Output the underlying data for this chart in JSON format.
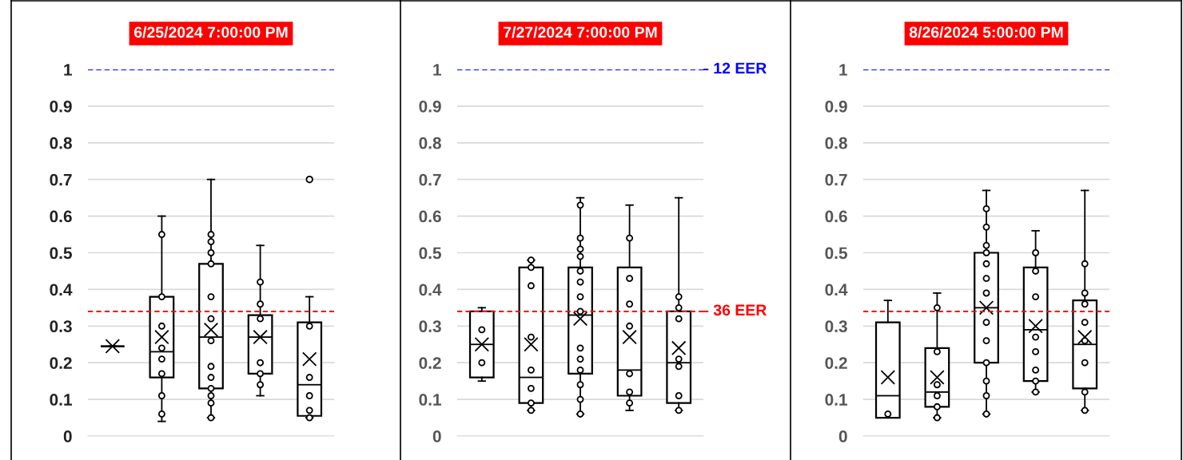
{
  "chart_data": [
    {
      "type": "box",
      "title": "6/25/2024 7:00:00 PM",
      "categories": [
        null,
        null,
        null,
        null,
        null
      ],
      "ylim": [
        0,
        1
      ],
      "yticks": [
        0,
        0.1,
        0.2,
        0.3,
        0.4,
        0.5,
        0.6,
        0.7,
        0.8,
        0.9,
        1
      ],
      "grid": "y",
      "marker": "circle",
      "color": "#000000",
      "ref_lines": [
        {
          "axis": "y",
          "value": 1,
          "color": "#0000ff",
          "line_style": "dashed"
        },
        {
          "axis": "y",
          "value": 0.34,
          "color": "#ff0000",
          "line_style": "dashed"
        }
      ],
      "boxes": [
        {
          "low": 0.245,
          "q1": 0.245,
          "median": 0.245,
          "q3": 0.245,
          "high": 0.245,
          "mean": 0.245
        },
        {
          "low": 0.04,
          "q1": 0.16,
          "median": 0.23,
          "q3": 0.38,
          "high": 0.6,
          "mean": 0.27
        },
        {
          "low": 0.05,
          "q1": 0.13,
          "median": 0.27,
          "q3": 0.47,
          "high": 0.7,
          "mean": 0.29
        },
        {
          "low": 0.11,
          "q1": 0.17,
          "median": 0.27,
          "q3": 0.33,
          "high": 0.52,
          "mean": 0.27
        },
        {
          "low": 0.05,
          "q1": 0.055,
          "median": 0.14,
          "q3": 0.31,
          "high": 0.38,
          "mean": 0.21,
          "outliers": [
            0.7
          ]
        }
      ],
      "series": [
        {
          "type": "scatter",
          "color": "#000000",
          "values": [
            null,
            0.55,
            0.55,
            0.42,
            0.3
          ]
        },
        {
          "type": "scatter",
          "color": "#000000",
          "values": [
            null,
            0.38,
            0.53,
            0.36,
            0.16
          ]
        },
        {
          "type": "scatter",
          "color": "#000000",
          "values": [
            null,
            0.3,
            0.5,
            0.32,
            0.11
          ]
        },
        {
          "type": "scatter",
          "color": "#000000",
          "values": [
            null,
            0.24,
            0.47,
            0.2,
            0.07
          ]
        },
        {
          "type": "scatter",
          "color": "#000000",
          "values": [
            null,
            0.21,
            0.38,
            0.17,
            0.05
          ]
        },
        {
          "type": "scatter",
          "color": "#000000",
          "values": [
            null,
            0.17,
            0.32,
            0.14,
            null
          ]
        },
        {
          "type": "scatter",
          "color": "#000000",
          "values": [
            null,
            0.11,
            0.26,
            null,
            null
          ]
        },
        {
          "type": "scatter",
          "color": "#000000",
          "values": [
            null,
            0.06,
            0.19,
            null,
            null
          ]
        },
        {
          "type": "scatter",
          "color": "#000000",
          "values": [
            null,
            null,
            0.16,
            null,
            null
          ]
        },
        {
          "type": "scatter",
          "color": "#000000",
          "values": [
            null,
            null,
            0.13,
            null,
            null
          ]
        },
        {
          "type": "scatter",
          "color": "#000000",
          "values": [
            null,
            null,
            0.11,
            null,
            null
          ]
        },
        {
          "type": "scatter",
          "color": "#000000",
          "values": [
            null,
            null,
            0.09,
            null,
            null
          ]
        },
        {
          "type": "scatter",
          "color": "#000000",
          "values": [
            null,
            null,
            0.05,
            null,
            null
          ]
        }
      ]
    },
    {
      "type": "box",
      "title": "7/27/2024 7:00:00 PM",
      "categories": [
        null,
        null,
        null,
        null,
        null
      ],
      "ylim": [
        0,
        1
      ],
      "yticks": [
        0,
        0.1,
        0.2,
        0.3,
        0.4,
        0.5,
        0.6,
        0.7,
        0.8,
        0.9,
        1
      ],
      "grid": "y",
      "marker": "circle",
      "color": "#000000",
      "ref_lines": [
        {
          "axis": "y",
          "value": 1,
          "color": "#0000ff",
          "line_style": "dashed",
          "label": "12 EER"
        },
        {
          "axis": "y",
          "value": 0.34,
          "color": "#ff0000",
          "line_style": "dashed",
          "label": "36 EER"
        }
      ],
      "boxes": [
        {
          "low": 0.15,
          "q1": 0.16,
          "median": 0.25,
          "q3": 0.34,
          "high": 0.35,
          "mean": 0.25
        },
        {
          "low": 0.07,
          "q1": 0.09,
          "median": 0.16,
          "q3": 0.46,
          "high": 0.48,
          "mean": 0.25
        },
        {
          "low": 0.06,
          "q1": 0.17,
          "median": 0.33,
          "q3": 0.46,
          "high": 0.65,
          "mean": 0.32
        },
        {
          "low": 0.07,
          "q1": 0.11,
          "median": 0.18,
          "q3": 0.46,
          "high": 0.63,
          "mean": 0.27
        },
        {
          "low": 0.07,
          "q1": 0.09,
          "median": 0.2,
          "q3": 0.34,
          "high": 0.65,
          "mean": 0.24
        }
      ],
      "series": [
        {
          "type": "scatter",
          "color": "#000000",
          "values": [
            0.29,
            0.48,
            0.63,
            0.54,
            0.38
          ]
        },
        {
          "type": "scatter",
          "color": "#000000",
          "values": [
            0.2,
            0.46,
            0.54,
            0.43,
            0.35
          ]
        },
        {
          "type": "scatter",
          "color": "#000000",
          "values": [
            null,
            0.41,
            0.51,
            0.36,
            0.32
          ]
        },
        {
          "type": "scatter",
          "color": "#000000",
          "values": [
            null,
            0.27,
            0.49,
            0.3,
            0.21
          ]
        },
        {
          "type": "scatter",
          "color": "#000000",
          "values": [
            null,
            0.18,
            0.45,
            0.17,
            0.19
          ]
        },
        {
          "type": "scatter",
          "color": "#000000",
          "values": [
            null,
            0.13,
            0.42,
            0.12,
            0.11
          ]
        },
        {
          "type": "scatter",
          "color": "#000000",
          "values": [
            null,
            0.09,
            0.38,
            0.09,
            0.07
          ]
        },
        {
          "type": "scatter",
          "color": "#000000",
          "values": [
            null,
            0.07,
            0.34,
            null,
            null
          ]
        },
        {
          "type": "scatter",
          "color": "#000000",
          "values": [
            null,
            null,
            0.24,
            null,
            null
          ]
        },
        {
          "type": "scatter",
          "color": "#000000",
          "values": [
            null,
            null,
            0.21,
            null,
            null
          ]
        },
        {
          "type": "scatter",
          "color": "#000000",
          "values": [
            null,
            null,
            0.18,
            null,
            null
          ]
        },
        {
          "type": "scatter",
          "color": "#000000",
          "values": [
            null,
            null,
            0.14,
            null,
            null
          ]
        },
        {
          "type": "scatter",
          "color": "#000000",
          "values": [
            null,
            null,
            0.1,
            null,
            null
          ]
        },
        {
          "type": "scatter",
          "color": "#000000",
          "values": [
            null,
            null,
            0.06,
            null,
            null
          ]
        }
      ]
    },
    {
      "type": "box",
      "title": "8/26/2024 5:00:00 PM",
      "categories": [
        null,
        null,
        null,
        null,
        null
      ],
      "ylim": [
        0,
        1
      ],
      "yticks": [
        0,
        0.1,
        0.2,
        0.3,
        0.4,
        0.5,
        0.6,
        0.7,
        0.8,
        0.9,
        1
      ],
      "grid": "y",
      "marker": "circle",
      "color": "#000000",
      "ref_lines": [
        {
          "axis": "y",
          "value": 1,
          "color": "#0000ff",
          "line_style": "dashed"
        },
        {
          "axis": "y",
          "value": 0.34,
          "color": "#ff0000",
          "line_style": "dashed"
        }
      ],
      "boxes": [
        {
          "low": 0.05,
          "q1": 0.05,
          "median": 0.11,
          "q3": 0.31,
          "high": 0.37,
          "mean": 0.16
        },
        {
          "low": 0.05,
          "q1": 0.08,
          "median": 0.12,
          "q3": 0.24,
          "high": 0.39,
          "mean": 0.16
        },
        {
          "low": 0.06,
          "q1": 0.2,
          "median": 0.35,
          "q3": 0.5,
          "high": 0.67,
          "mean": 0.35
        },
        {
          "low": 0.12,
          "q1": 0.15,
          "median": 0.29,
          "q3": 0.46,
          "high": 0.56,
          "mean": 0.3
        },
        {
          "low": 0.07,
          "q1": 0.13,
          "median": 0.25,
          "q3": 0.37,
          "high": 0.67,
          "mean": 0.27
        }
      ],
      "series": [
        {
          "type": "scatter",
          "color": "#000000",
          "values": [
            0.06,
            0.35,
            0.62,
            0.5,
            0.47
          ]
        },
        {
          "type": "scatter",
          "color": "#000000",
          "values": [
            null,
            0.23,
            0.57,
            0.45,
            0.39
          ]
        },
        {
          "type": "scatter",
          "color": "#000000",
          "values": [
            null,
            0.14,
            0.52,
            0.38,
            0.36
          ]
        },
        {
          "type": "scatter",
          "color": "#000000",
          "values": [
            null,
            0.11,
            0.5,
            0.27,
            0.31
          ]
        },
        {
          "type": "scatter",
          "color": "#000000",
          "values": [
            null,
            0.08,
            0.47,
            0.23,
            0.26
          ]
        },
        {
          "type": "scatter",
          "color": "#000000",
          "values": [
            null,
            0.05,
            0.43,
            0.18,
            0.2
          ]
        },
        {
          "type": "scatter",
          "color": "#000000",
          "values": [
            null,
            null,
            0.39,
            0.15,
            0.12
          ]
        },
        {
          "type": "scatter",
          "color": "#000000",
          "values": [
            null,
            null,
            0.31,
            0.12,
            0.07
          ]
        },
        {
          "type": "scatter",
          "color": "#000000",
          "values": [
            null,
            null,
            0.26,
            null,
            null
          ]
        },
        {
          "type": "scatter",
          "color": "#000000",
          "values": [
            null,
            null,
            0.2,
            null,
            null
          ]
        },
        {
          "type": "scatter",
          "color": "#000000",
          "values": [
            null,
            null,
            0.15,
            null,
            null
          ]
        },
        {
          "type": "scatter",
          "color": "#000000",
          "values": [
            null,
            null,
            0.11,
            null,
            null
          ]
        },
        {
          "type": "scatter",
          "color": "#000000",
          "values": [
            null,
            null,
            0.06,
            null,
            null
          ]
        }
      ]
    }
  ]
}
